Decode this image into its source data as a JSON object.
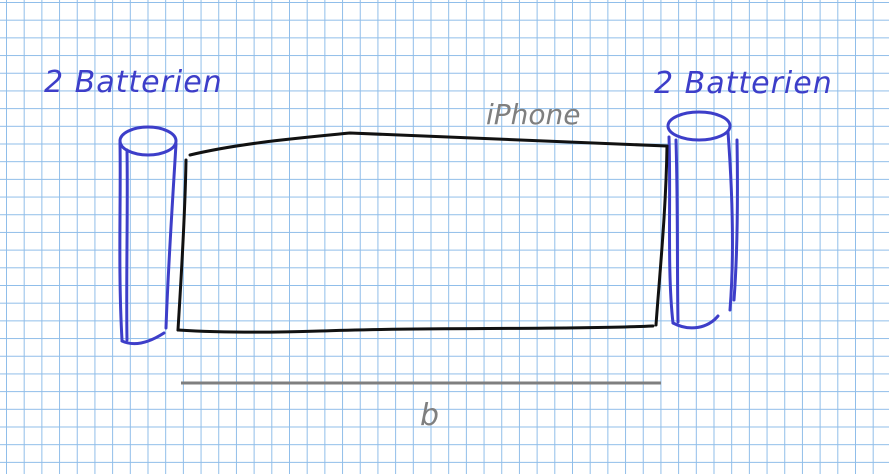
{
  "labels": {
    "left_batteries": "2 Batterien",
    "right_batteries": "2 Batterien",
    "phone": "iPhone",
    "dimension": "b"
  },
  "colors": {
    "paper": "#ffffff",
    "grid": "#8fbde9",
    "ink_blue": "#3d3ec9",
    "ink_black": "#111111",
    "ink_gray": "#7f7f7f"
  }
}
